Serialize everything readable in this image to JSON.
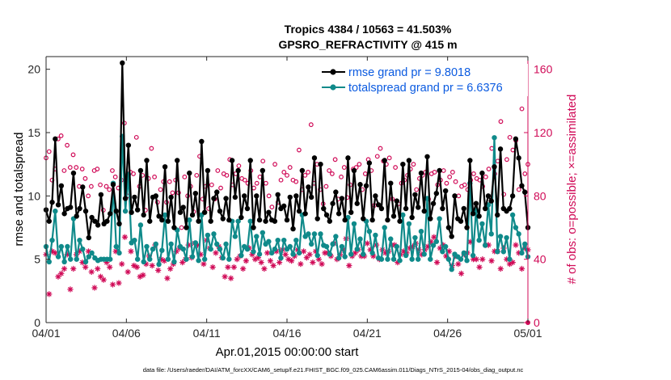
{
  "chart_data": {
    "type": "line",
    "title": "Tropics 4384 / 10563 = 41.503%",
    "subtitle": "GPSRO_REFRACTIVITY @ 415 m",
    "xlabel": "Apr.01,2015 00:00:00 start",
    "ylabel": "rmse and totalspread",
    "y2label": "# of obs: o=possible; ×=assimilated",
    "xlim": [
      0,
      30
    ],
    "ylim": [
      0,
      21
    ],
    "y2lim": [
      0,
      168
    ],
    "x_ticks": [
      {
        "value": 0,
        "label": "04/01"
      },
      {
        "value": 5,
        "label": "04/06"
      },
      {
        "value": 10,
        "label": "04/11"
      },
      {
        "value": 15,
        "label": "04/16"
      },
      {
        "value": 20,
        "label": "04/21"
      },
      {
        "value": 25,
        "label": "04/26"
      },
      {
        "value": 30,
        "label": "05/01"
      }
    ],
    "y_ticks": [
      0,
      5,
      10,
      15,
      20
    ],
    "y2_ticks": [
      0,
      40,
      80,
      120,
      160
    ],
    "legend_position": "top-right",
    "series": [
      {
        "name": "rmse grand pr = 9.8018",
        "color": "#000000",
        "axis": "left",
        "marker": "dot",
        "values": [
          8.9,
          8.0,
          9.5,
          14.5,
          9.3,
          10.8,
          8.6,
          9.0,
          9.1,
          11.8,
          8.4,
          9.0,
          10.7,
          8.8,
          6.7,
          8.3,
          8.0,
          7.7,
          10.1,
          7.8,
          8.0,
          8.6,
          10.9,
          8.8,
          7.8,
          20.5,
          9.8,
          14.0,
          8.7,
          9.9,
          8.9,
          12.0,
          8.5,
          12.8,
          8.0,
          9.9,
          10.0,
          8.4,
          8.1,
          12.3,
          8.0,
          9.9,
          7.5,
          12.8,
          8.7,
          9.1,
          7.5,
          11.8,
          8.5,
          10.2,
          8.0,
          14.3,
          8.7,
          12.0,
          8.0,
          9.8,
          10.3,
          8.8,
          8.2,
          9.8,
          8.1,
          12.8,
          9.9,
          12.0,
          8.3,
          10.0,
          9.0,
          12.8,
          7.5,
          10.0,
          8.1,
          12.0,
          8.0,
          8.7,
          8.1,
          8.0,
          10.1,
          9.0,
          9.2,
          8.1,
          9.9,
          7.4,
          10.0,
          8.8,
          12.0,
          8.6,
          10.7,
          9.9,
          13.0,
          8.2,
          12.5,
          9.0,
          8.5,
          8.0,
          9.4,
          10.3,
          8.6,
          9.8,
          8.1,
          13.0,
          8.7,
          12.0,
          9.4,
          10.9,
          8.2,
          10.8,
          12.6,
          8.1,
          10.0,
          9.3,
          9.0,
          12.8,
          8.1,
          11.0,
          8.4,
          9.6,
          8.0,
          12.5,
          9.0,
          12.8,
          8.3,
          10.1,
          9.1,
          11.8,
          8.8,
          13.1,
          8.2,
          9.4,
          10.2,
          12.0,
          9.0,
          10.4,
          7.5,
          6.8,
          10.0,
          8.2,
          8.0,
          9.0,
          7.5,
          12.8,
          8.6,
          9.4,
          8.4,
          11.8,
          9.0,
          10.0,
          9.6,
          12.3,
          8.5,
          13.7,
          9.0,
          8.8,
          9.0,
          10.0,
          14.5,
          13.0,
          10.8,
          10.3,
          7.5
        ]
      },
      {
        "name": "totalspread grand pr = 6.6376",
        "color": "#0f8a8a",
        "axis": "left",
        "marker": "dot",
        "values": [
          6.0,
          4.8,
          6.5,
          8.8,
          5.2,
          6.0,
          4.8,
          6.0,
          5.0,
          8.2,
          5.0,
          6.5,
          5.8,
          4.8,
          5.2,
          5.5,
          5.1,
          4.9,
          5.0,
          5.0,
          5.0,
          5.0,
          11.0,
          6.0,
          5.5,
          14.7,
          8.8,
          11.7,
          6.3,
          6.5,
          5.0,
          7.7,
          4.8,
          6.0,
          5.0,
          5.8,
          6.2,
          4.6,
          5.7,
          8.5,
          5.0,
          6.2,
          4.8,
          7.3,
          6.0,
          5.8,
          5.0,
          8.1,
          5.2,
          6.3,
          4.9,
          8.5,
          5.0,
          6.9,
          5.8,
          7.0,
          6.2,
          5.8,
          5.1,
          6.2,
          5.0,
          8.0,
          6.8,
          8.0,
          5.3,
          6.0,
          5.8,
          8.0,
          5.6,
          6.8,
          5.4,
          7.1,
          6.2,
          6.4,
          5.5,
          5.8,
          6.5,
          5.1,
          6.5,
          5.8,
          6.0,
          5.4,
          6.5,
          5.5,
          8.5,
          6.8,
          7.0,
          6.2,
          7.0,
          5.3,
          7.0,
          6.1,
          6.0,
          5.4,
          6.2,
          6.8,
          5.1,
          6.0,
          5.2,
          8.3,
          5.4,
          7.8,
          5.8,
          6.6,
          5.4,
          8.0,
          7.2,
          5.5,
          6.9,
          5.1,
          5.0,
          7.5,
          5.0,
          6.6,
          5.0,
          6.0,
          4.9,
          8.5,
          5.3,
          7.8,
          5.0,
          6.7,
          5.0,
          7.2,
          5.4,
          9.8,
          5.0,
          6.1,
          6.4,
          8.2,
          5.6,
          6.0,
          5.0,
          4.2,
          5.4,
          5.2,
          5.0,
          5.5,
          4.9,
          11.0,
          5.3,
          8.9,
          6.5,
          7.8,
          6.1,
          9.3,
          7.0,
          14.6,
          5.6,
          6.8,
          5.6,
          6.7,
          5.0,
          8.5,
          7.5,
          7.0,
          5.5,
          6.2,
          5.2
        ]
      },
      {
        "name": "possible",
        "color": "#d00a57",
        "axis": "right",
        "marker": "circle",
        "values": [
          104,
          108,
          90,
          97,
          116,
          118,
          96,
          112,
          98,
          106,
          98,
          86,
          97,
          91,
          80,
          86,
          96,
          97,
          87,
          71,
          86,
          84,
          96,
          92,
          85,
          90,
          126,
          80,
          95,
          94,
          117,
          86,
          93,
          71,
          91,
          110,
          92,
          76,
          84,
          89,
          76,
          89,
          82,
          90,
          82,
          60,
          92,
          80,
          86,
          70,
          93,
          105,
          78,
          86,
          72,
          87,
          78,
          96,
          85,
          94,
          93,
          103,
          87,
          94,
          99,
          91,
          90,
          88,
          96,
          85,
          88,
          92,
          102,
          88,
          80,
          73,
          100,
          76,
          90,
          95,
          93,
          98,
          90,
          89,
          109,
          84,
          93,
          95,
          125,
          88,
          100,
          84,
          75,
          86,
          96,
          94,
          103,
          78,
          92,
          98,
          79,
          87,
          97,
          98,
          100,
          84,
          94,
          103,
          96,
          74,
          105,
          110,
          102,
          100,
          104,
          78,
          98,
          75,
          88,
          90,
          93,
          97,
          100,
          84,
          91,
          93,
          95,
          78,
          94,
          95,
          87,
          90,
          96,
          88,
          92,
          95,
          89,
          80,
          86,
          87,
          84,
          90,
          94,
          91,
          90,
          86,
          92,
          97,
          110,
          94,
          102,
          127,
          81,
          103,
          117,
          109,
          115,
          84,
          135,
          94,
          100
        ]
      },
      {
        "name": "assimilated",
        "color": "#d00a57",
        "axis": "right",
        "marker": "asterisk",
        "values": [
          43,
          18,
          45,
          44,
          29,
          31,
          34,
          43,
          21,
          34,
          43,
          45,
          38,
          35,
          45,
          32,
          22,
          34,
          29,
          27,
          38,
          35,
          24,
          45,
          25,
          37,
          54,
          32,
          45,
          36,
          35,
          29,
          30,
          37,
          42,
          36,
          49,
          33,
          40,
          39,
          28,
          34,
          37,
          45,
          47,
          38,
          40,
          49,
          41,
          50,
          49,
          43,
          37,
          52,
          47,
          35,
          44,
          48,
          41,
          29,
          35,
          28,
          35,
          40,
          42,
          34,
          39,
          47,
          43,
          40,
          41,
          38,
          34,
          44,
          39,
          36,
          45,
          38,
          46,
          43,
          40,
          39,
          42,
          46,
          37,
          45,
          41,
          43,
          38,
          45,
          40,
          37,
          44,
          44,
          42,
          50,
          40,
          43,
          46,
          53,
          36,
          42,
          44,
          46,
          42,
          42,
          50,
          46,
          42,
          49,
          40,
          46,
          44,
          45,
          49,
          49,
          38,
          43,
          45,
          44,
          47,
          48,
          50,
          46,
          43,
          46,
          48,
          51,
          54,
          38,
          47,
          49,
          42,
          45,
          36,
          42,
          37,
          31,
          43,
          44,
          51,
          40,
          40,
          35,
          40,
          49,
          49,
          39,
          45,
          45,
          34,
          47,
          40,
          37,
          38,
          49,
          44,
          34,
          47,
          46
        ]
      }
    ]
  },
  "footer": "data file: /Users/raeder/DAI/ATM_forcXX/CAM6_setup/f.e21.FHIST_BGC.f09_025.CAM6assim.011/Diags_NTrS_2015-04/obs_diag_output.nc"
}
